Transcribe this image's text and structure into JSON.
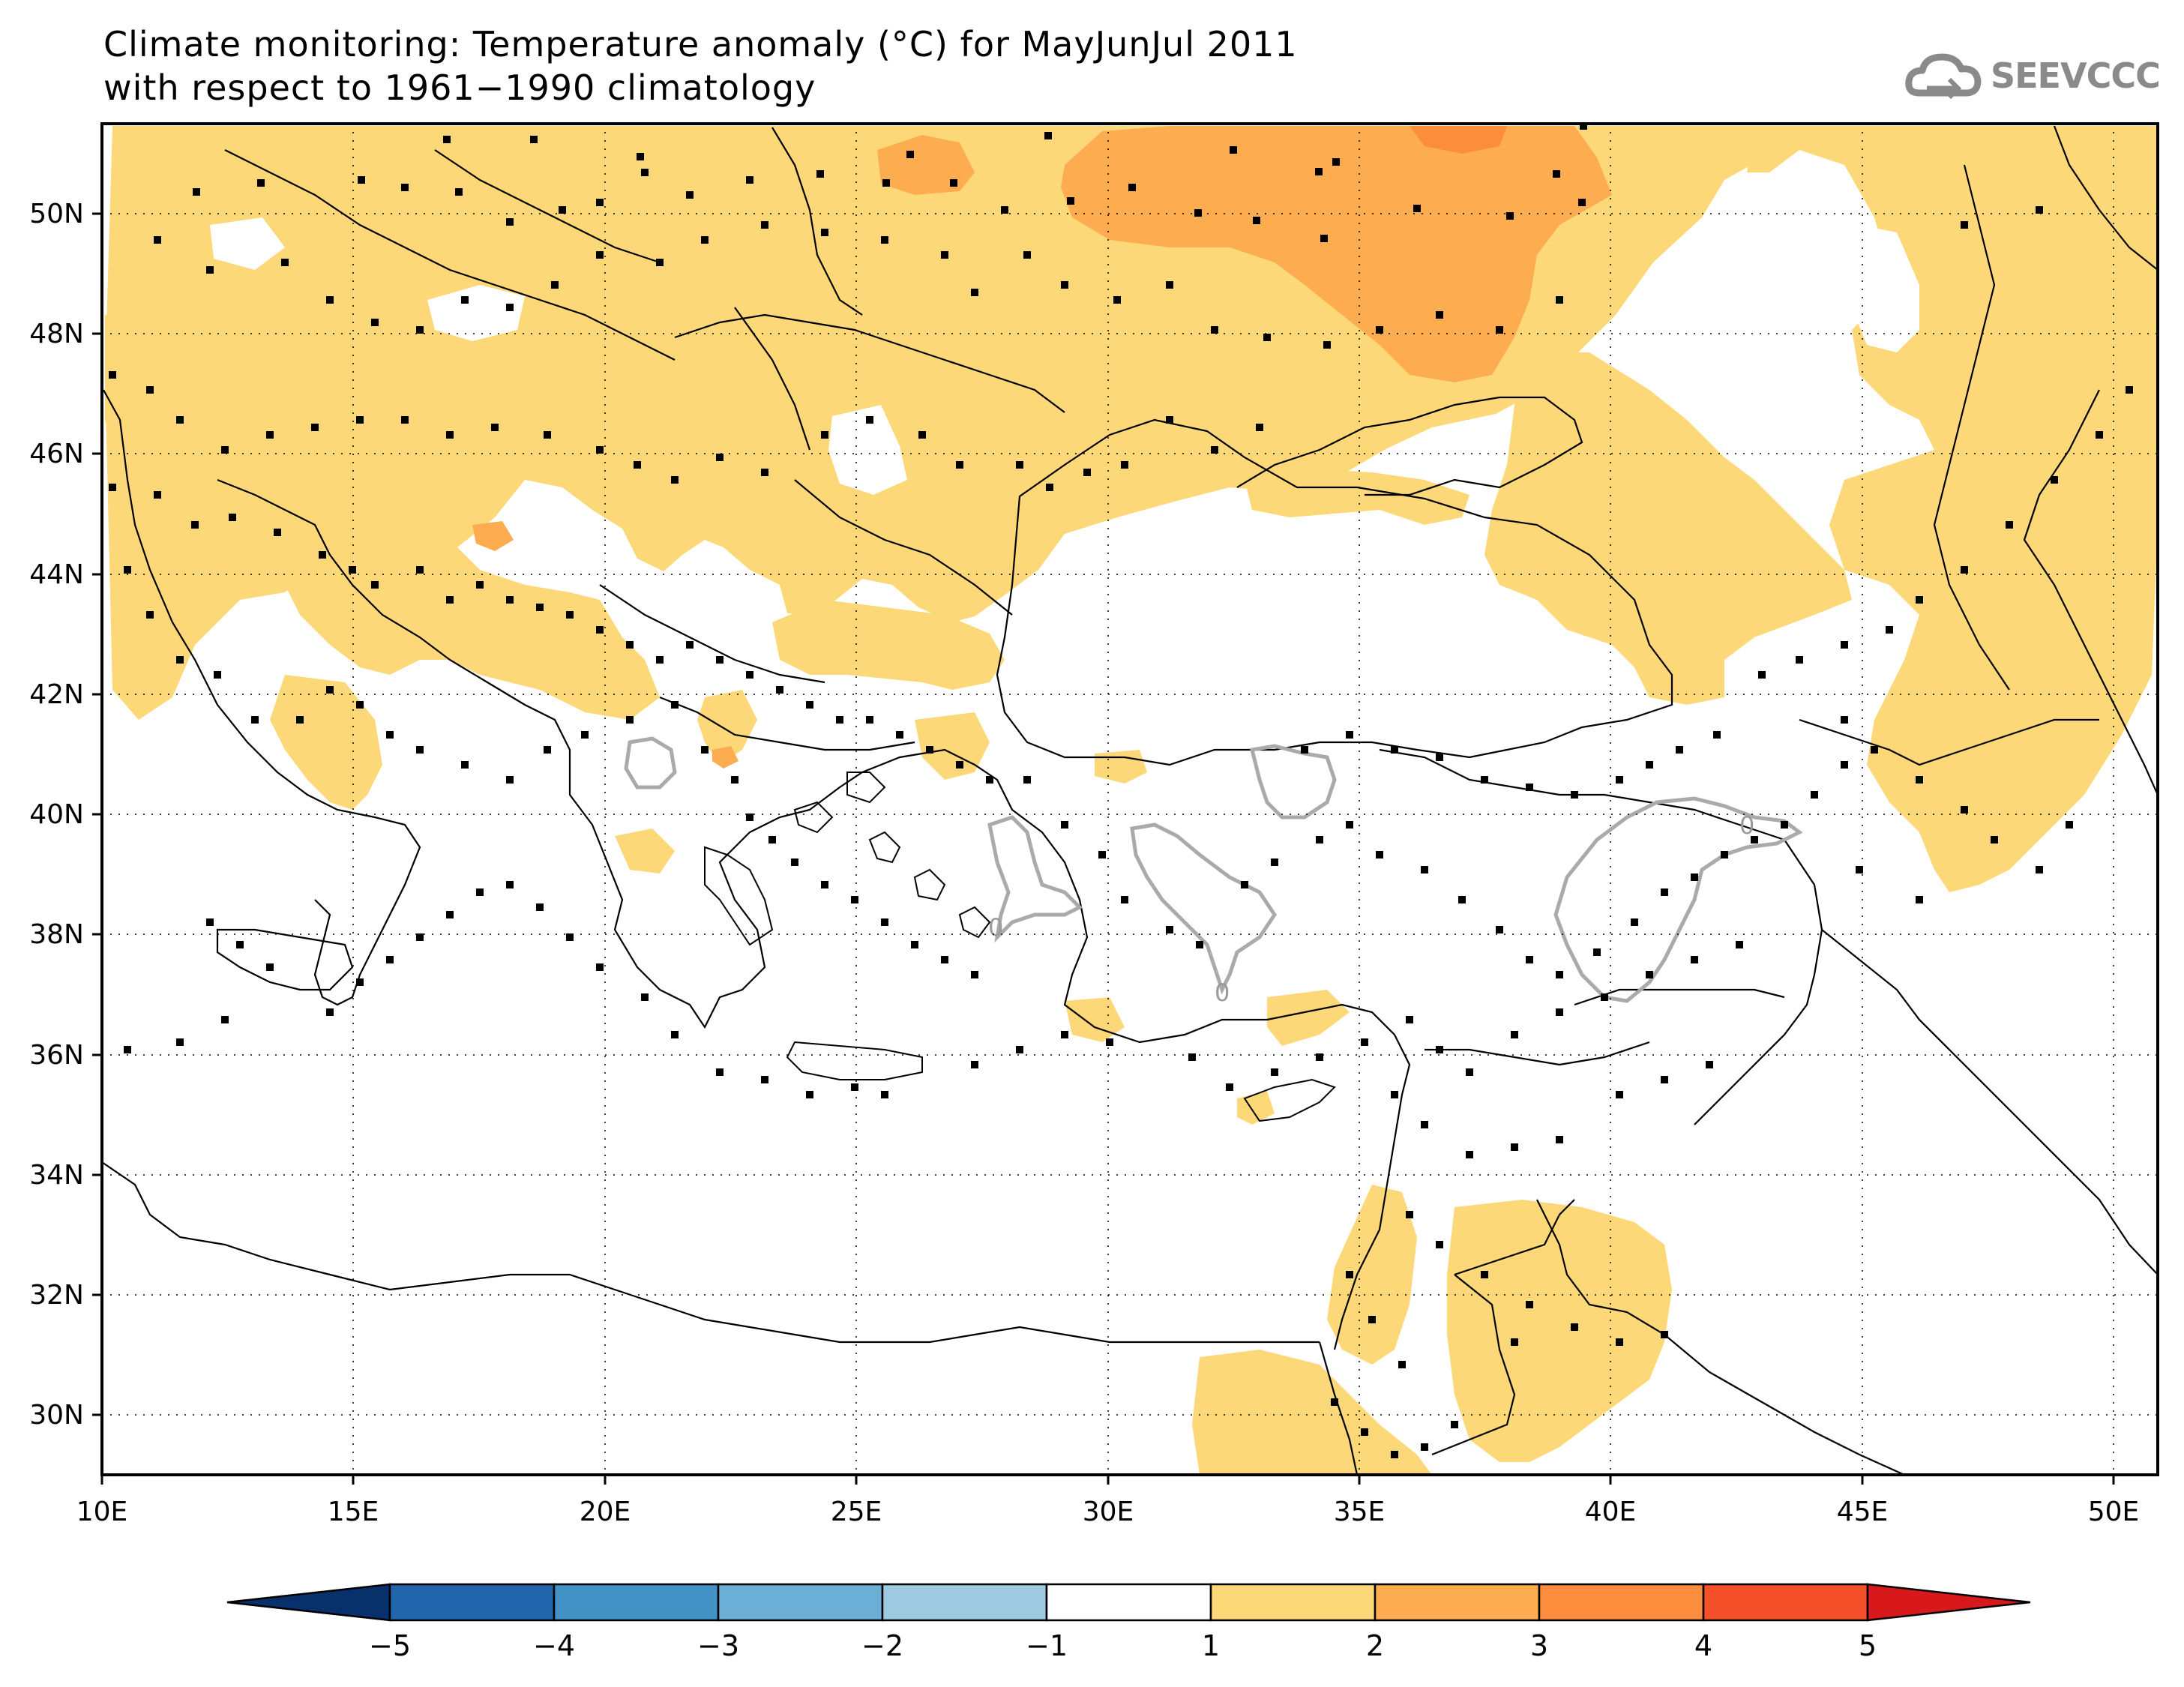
{
  "title": {
    "line1": "Climate monitoring: Temperature anomaly (°C) for MayJunJul 2011",
    "line2": "with respect to 1961−1990 climatology"
  },
  "logo": {
    "text": "SEEVCCC",
    "icon": "cloud-icon",
    "color": "#8a8a8a"
  },
  "map": {
    "lon_range": [
      10,
      51
    ],
    "lat_range": [
      29,
      51.5
    ],
    "x_ticks": [
      "10E",
      "15E",
      "20E",
      "25E",
      "30E",
      "35E",
      "40E",
      "45E",
      "50E"
    ],
    "y_ticks": [
      "30N",
      "32N",
      "34N",
      "36N",
      "38N",
      "40N",
      "42N",
      "44N",
      "46N",
      "48N",
      "50N"
    ],
    "contour_label": "0",
    "colors": {
      "bin_1_2": "#fdd878",
      "bin_2_3": "#fdad50",
      "bin_3_4": "#fc8d3c",
      "contour": "#aaaaaa",
      "station": "#000000"
    }
  },
  "colorbar": {
    "labels": [
      "−5",
      "−4",
      "−3",
      "−2",
      "−1",
      "1",
      "2",
      "3",
      "4",
      "5"
    ],
    "colors": [
      "#08306b",
      "#2166ac",
      "#4292c6",
      "#6baed6",
      "#9ecae1",
      "#ffffff",
      "#fdd878",
      "#fdad50",
      "#fc8d3c",
      "#f4502a",
      "#d7191c"
    ]
  }
}
